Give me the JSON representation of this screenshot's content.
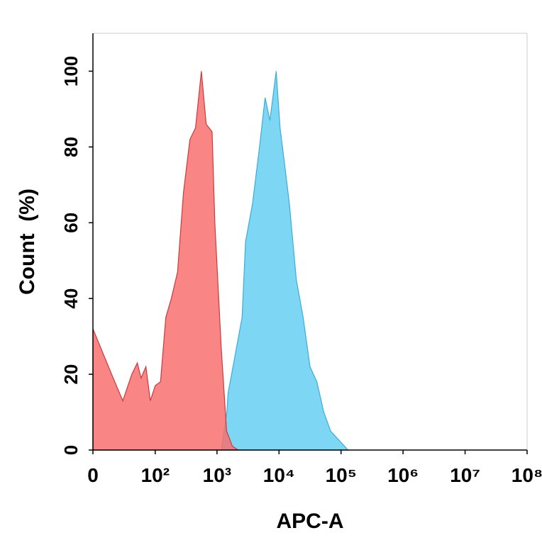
{
  "chart_data": {
    "type": "area",
    "xlabel": "APC-A",
    "ylabel": "Count  (%)",
    "xscale": "asinh",
    "xlim": [
      0,
      100000000
    ],
    "xticks": [
      0,
      {
        "value": 100,
        "label": "10²"
      },
      {
        "value": 1000,
        "label": "10³"
      },
      {
        "value": 10000,
        "label": "10⁴"
      },
      {
        "value": 100000,
        "label": "10⁵"
      },
      {
        "value": 1000000,
        "label": "10⁶"
      },
      {
        "value": 10000000,
        "label": "10⁷"
      },
      {
        "value": 100000000,
        "label": "10⁸"
      }
    ],
    "ylim": [
      0,
      110
    ],
    "yticks": [
      0,
      20,
      40,
      60,
      80,
      100
    ],
    "series": [
      {
        "color": "#7dd6f3",
        "stroke": "#3aaed8",
        "x": [
          1170,
          1440,
          1510,
          1960,
          2540,
          2890,
          3740,
          4850,
          5970,
          7140,
          9010,
          10400,
          12400,
          14700,
          19000,
          24500,
          31600,
          40800,
          52700,
          68000,
          100000,
          130000
        ],
        "values": [
          0,
          10,
          15,
          25,
          35,
          55,
          65,
          80,
          93,
          87,
          100,
          85,
          75,
          65,
          45,
          35,
          22,
          18,
          10,
          5,
          2,
          0
        ]
      },
      {
        "color": "#f87070",
        "stroke": "#c83c3c",
        "x": [
          0,
          15,
          27,
          40,
          50,
          58,
          70,
          83,
          100,
          122,
          149,
          183,
          231,
          288,
          366,
          450,
          560,
          670,
          834,
          923,
          1170,
          1430,
          1770,
          2200
        ],
        "values": [
          32,
          20,
          13,
          20,
          23,
          19,
          22,
          13,
          17,
          18,
          35,
          40,
          47,
          68,
          82,
          85,
          100,
          86,
          84,
          60,
          27,
          5,
          1,
          0
        ]
      }
    ]
  }
}
